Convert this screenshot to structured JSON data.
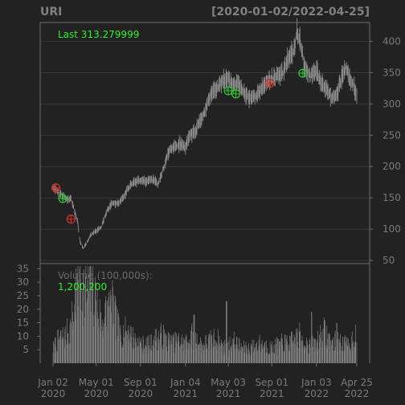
{
  "chart_data": {
    "type": "candlestick",
    "symbol": "URI",
    "date_range": "[2020-01-02/2022-04-25]",
    "last_label": "Last 313.279999",
    "volume_label": "Volume (100,000s):",
    "volume_value": "1,200,200",
    "x_ticks": [
      {
        "date": "2020-01-02",
        "line1": "Jan 02",
        "line2": "2020"
      },
      {
        "date": "2020-05-01",
        "line1": "May 01",
        "line2": "2020"
      },
      {
        "date": "2020-09-01",
        "line1": "Sep 01",
        "line2": "2020"
      },
      {
        "date": "2021-01-04",
        "line1": "Jan 04",
        "line2": "2021"
      },
      {
        "date": "2021-05-03",
        "line1": "May 03",
        "line2": "2021"
      },
      {
        "date": "2021-09-01",
        "line1": "Sep 01",
        "line2": "2021"
      },
      {
        "date": "2022-01-03",
        "line1": "Jan 03",
        "line2": "2022"
      },
      {
        "date": "2022-04-25",
        "line1": "Apr 25",
        "line2": "2022"
      }
    ],
    "price_ticks": [
      50,
      100,
      150,
      200,
      250,
      300,
      350,
      400
    ],
    "price_range": [
      45,
      430
    ],
    "volume_ticks": [
      5,
      10,
      15,
      20,
      25,
      30,
      35
    ],
    "volume_range": [
      0,
      36
    ],
    "price_series": [
      [
        "2020-01-02",
        167
      ],
      [
        "2020-01-15",
        160
      ],
      [
        "2020-01-28",
        153
      ],
      [
        "2020-02-10",
        148
      ],
      [
        "2020-02-21",
        150
      ],
      [
        "2020-03-02",
        128
      ],
      [
        "2020-03-10",
        112
      ],
      [
        "2020-03-18",
        78
      ],
      [
        "2020-03-25",
        70
      ],
      [
        "2020-04-03",
        76
      ],
      [
        "2020-04-15",
        90
      ],
      [
        "2020-05-01",
        97
      ],
      [
        "2020-05-15",
        104
      ],
      [
        "2020-06-01",
        130
      ],
      [
        "2020-06-15",
        142
      ],
      [
        "2020-07-01",
        140
      ],
      [
        "2020-07-15",
        150
      ],
      [
        "2020-08-01",
        168
      ],
      [
        "2020-08-15",
        176
      ],
      [
        "2020-09-01",
        178
      ],
      [
        "2020-09-15",
        175
      ],
      [
        "2020-10-01",
        180
      ],
      [
        "2020-10-20",
        172
      ],
      [
        "2020-11-05",
        200
      ],
      [
        "2020-11-20",
        225
      ],
      [
        "2020-12-05",
        232
      ],
      [
        "2020-12-20",
        236
      ],
      [
        "2021-01-04",
        230
      ],
      [
        "2021-01-15",
        250
      ],
      [
        "2021-02-01",
        255
      ],
      [
        "2021-02-15",
        275
      ],
      [
        "2021-03-01",
        290
      ],
      [
        "2021-03-15",
        315
      ],
      [
        "2021-04-01",
        325
      ],
      [
        "2021-04-15",
        335
      ],
      [
        "2021-05-03",
        340
      ],
      [
        "2021-05-15",
        330
      ],
      [
        "2021-06-01",
        333
      ],
      [
        "2021-06-15",
        318
      ],
      [
        "2021-07-01",
        310
      ],
      [
        "2021-07-15",
        312
      ],
      [
        "2021-08-01",
        320
      ],
      [
        "2021-08-15",
        335
      ],
      [
        "2021-09-01",
        340
      ],
      [
        "2021-09-15",
        345
      ],
      [
        "2021-10-01",
        350
      ],
      [
        "2021-10-15",
        370
      ],
      [
        "2021-11-01",
        385
      ],
      [
        "2021-11-10",
        415
      ],
      [
        "2021-11-20",
        395
      ],
      [
        "2021-12-01",
        360
      ],
      [
        "2021-12-15",
        345
      ],
      [
        "2022-01-03",
        352
      ],
      [
        "2022-01-15",
        335
      ],
      [
        "2022-02-01",
        325
      ],
      [
        "2022-02-15",
        310
      ],
      [
        "2022-03-01",
        315
      ],
      [
        "2022-03-15",
        345
      ],
      [
        "2022-03-25",
        358
      ],
      [
        "2022-04-05",
        340
      ],
      [
        "2022-04-15",
        330
      ],
      [
        "2022-04-25",
        313.28
      ]
    ],
    "signals": [
      {
        "date": "2020-01-10",
        "price": 166,
        "kind": "sell",
        "color": "#d03030"
      },
      {
        "date": "2020-01-29",
        "price": 149,
        "kind": "buy",
        "color": "#30c030"
      },
      {
        "date": "2020-02-21",
        "price": 116,
        "kind": "sell",
        "color": "#d03030"
      },
      {
        "date": "2021-05-03",
        "price": 321,
        "kind": "buy",
        "color": "#30c030"
      },
      {
        "date": "2021-05-24",
        "price": 316,
        "kind": "buy",
        "color": "#30c030"
      },
      {
        "date": "2021-08-26",
        "price": 333,
        "kind": "sell",
        "color": "#d03030"
      },
      {
        "date": "2021-11-26",
        "price": 349,
        "kind": "buy",
        "color": "#30c030"
      }
    ],
    "volume_series": [
      [
        "2020-01-02",
        6
      ],
      [
        "2020-01-20",
        10
      ],
      [
        "2020-02-05",
        11
      ],
      [
        "2020-02-20",
        14
      ],
      [
        "2020-03-01",
        22
      ],
      [
        "2020-03-12",
        34
      ],
      [
        "2020-03-20",
        32
      ],
      [
        "2020-04-01",
        28
      ],
      [
        "2020-04-15",
        30
      ],
      [
        "2020-05-01",
        25
      ],
      [
        "2020-05-15",
        16
      ],
      [
        "2020-06-01",
        21
      ],
      [
        "2020-06-15",
        22
      ],
      [
        "2020-07-01",
        14
      ],
      [
        "2020-07-15",
        12
      ],
      [
        "2020-08-01",
        13
      ],
      [
        "2020-08-15",
        9
      ],
      [
        "2020-09-01",
        8
      ],
      [
        "2020-09-15",
        7
      ],
      [
        "2020-10-01",
        8
      ],
      [
        "2020-10-15",
        10
      ],
      [
        "2020-11-01",
        11
      ],
      [
        "2020-11-15",
        9
      ],
      [
        "2020-12-01",
        8
      ],
      [
        "2020-12-15",
        9
      ],
      [
        "2021-01-04",
        8
      ],
      [
        "2021-01-20",
        11
      ],
      [
        "2021-02-05",
        9
      ],
      [
        "2021-02-20",
        7
      ],
      [
        "2021-03-01",
        8
      ],
      [
        "2021-03-15",
        9
      ],
      [
        "2021-04-01",
        10
      ],
      [
        "2021-04-15",
        7
      ],
      [
        "2021-05-01",
        6
      ],
      [
        "2021-05-15",
        9
      ],
      [
        "2021-06-01",
        7
      ],
      [
        "2021-06-15",
        6
      ],
      [
        "2021-07-01",
        6
      ],
      [
        "2021-07-15",
        7
      ],
      [
        "2021-08-01",
        8
      ],
      [
        "2021-08-15",
        7
      ],
      [
        "2021-09-01",
        6
      ],
      [
        "2021-09-15",
        7
      ],
      [
        "2021-10-01",
        8
      ],
      [
        "2021-10-15",
        8
      ],
      [
        "2021-11-01",
        9
      ],
      [
        "2021-11-15",
        11
      ],
      [
        "2021-12-01",
        9
      ],
      [
        "2021-12-15",
        7
      ],
      [
        "2022-01-03",
        8
      ],
      [
        "2022-01-20",
        13
      ],
      [
        "2022-02-01",
        11
      ],
      [
        "2022-02-15",
        8
      ],
      [
        "2022-03-01",
        9
      ],
      [
        "2022-03-15",
        8
      ],
      [
        "2022-04-01",
        7
      ],
      [
        "2022-04-25",
        12
      ]
    ],
    "volume_spikes": [
      [
        "2020-03-16",
        35
      ],
      [
        "2020-04-20",
        30
      ],
      [
        "2020-06-10",
        24
      ],
      [
        "2021-01-28",
        18
      ],
      [
        "2021-04-28",
        23
      ],
      [
        "2021-12-20",
        19
      ],
      [
        "2022-02-28",
        15
      ]
    ],
    "colors": {
      "background": "#222222",
      "grid": "#444444",
      "frame": "#6e6e6e",
      "price_line": "#8a8a8a",
      "volume_bar": "#808080",
      "label_text": "#7a7a7a",
      "highlight_text": "#33ee33"
    }
  }
}
